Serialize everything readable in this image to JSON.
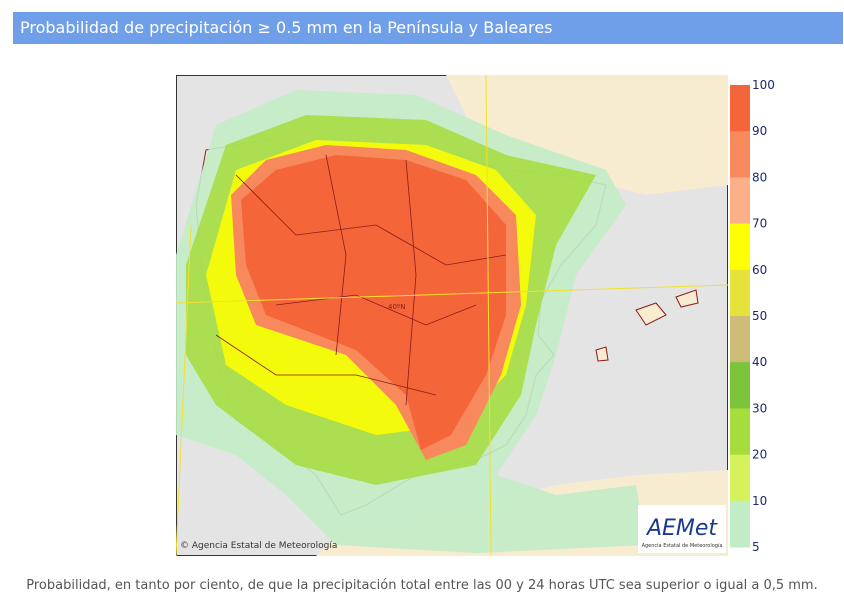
{
  "header": {
    "title": "Probabilidad de precipitación ≥ 0.5 mm en la Península y Baleares"
  },
  "map": {
    "lat_label": "40ºN",
    "credit": "© Agencia Estatal de Meteorología",
    "logo": "AEMet",
    "logo_sub": "Agencia Estatal de Meteorología"
  },
  "legend": {
    "ticks": [
      100,
      90,
      80,
      70,
      60,
      50,
      40,
      30,
      20,
      10,
      5
    ],
    "colors": [
      "#f4663a",
      "#f7895c",
      "#fbb08a",
      "#ffff00",
      "#e6e23c",
      "#cdbb78",
      "#7cc43a",
      "#a6dc3c",
      "#d4f25a",
      "#c2ecc6"
    ]
  },
  "caption": "Probabilidad, en tanto por ciento, de que la precipitación total entre las 00 y 24 horas UTC sea superior o igual a 0,5 mm."
}
